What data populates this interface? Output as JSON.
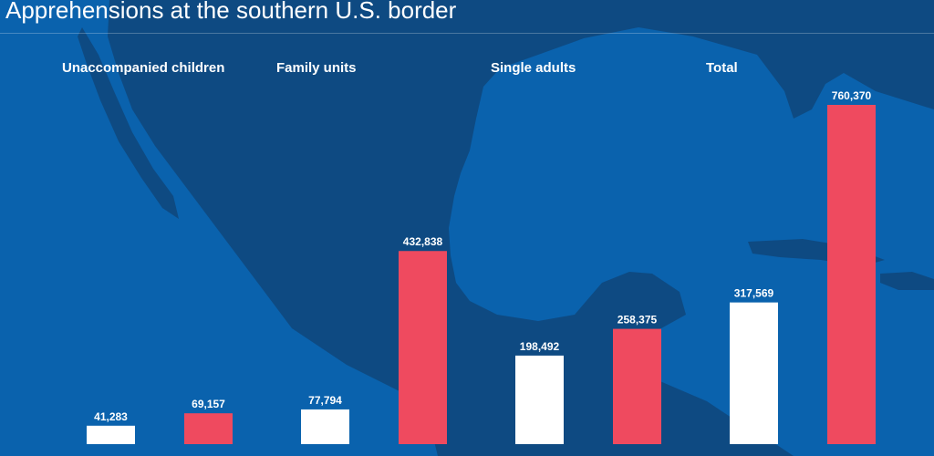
{
  "title": "Apprehensions at the southern U.S. border",
  "colors": {
    "background": "#0a62ad",
    "land": "#0e4a82",
    "bar_white": "#ffffff",
    "bar_red": "#ef4a5f"
  },
  "chart_data": {
    "type": "bar",
    "title": "Apprehensions at the southern U.S. border",
    "categories": [
      "Unaccompanied children",
      "Family units",
      "Single adults",
      "Total"
    ],
    "series": [
      {
        "color": "#ffffff",
        "values": [
          41283,
          77794,
          198492,
          317569
        ]
      },
      {
        "color": "#ef4a5f",
        "values": [
          69157,
          432838,
          258375,
          760370
        ]
      }
    ],
    "labels": [
      [
        "41,283",
        "69,157"
      ],
      [
        "77,794",
        "432,838"
      ],
      [
        "198,492",
        "258,375"
      ],
      [
        "317,569",
        "760,370"
      ]
    ],
    "ylim": [
      0,
      800000
    ],
    "grid": false,
    "legend": "none"
  }
}
